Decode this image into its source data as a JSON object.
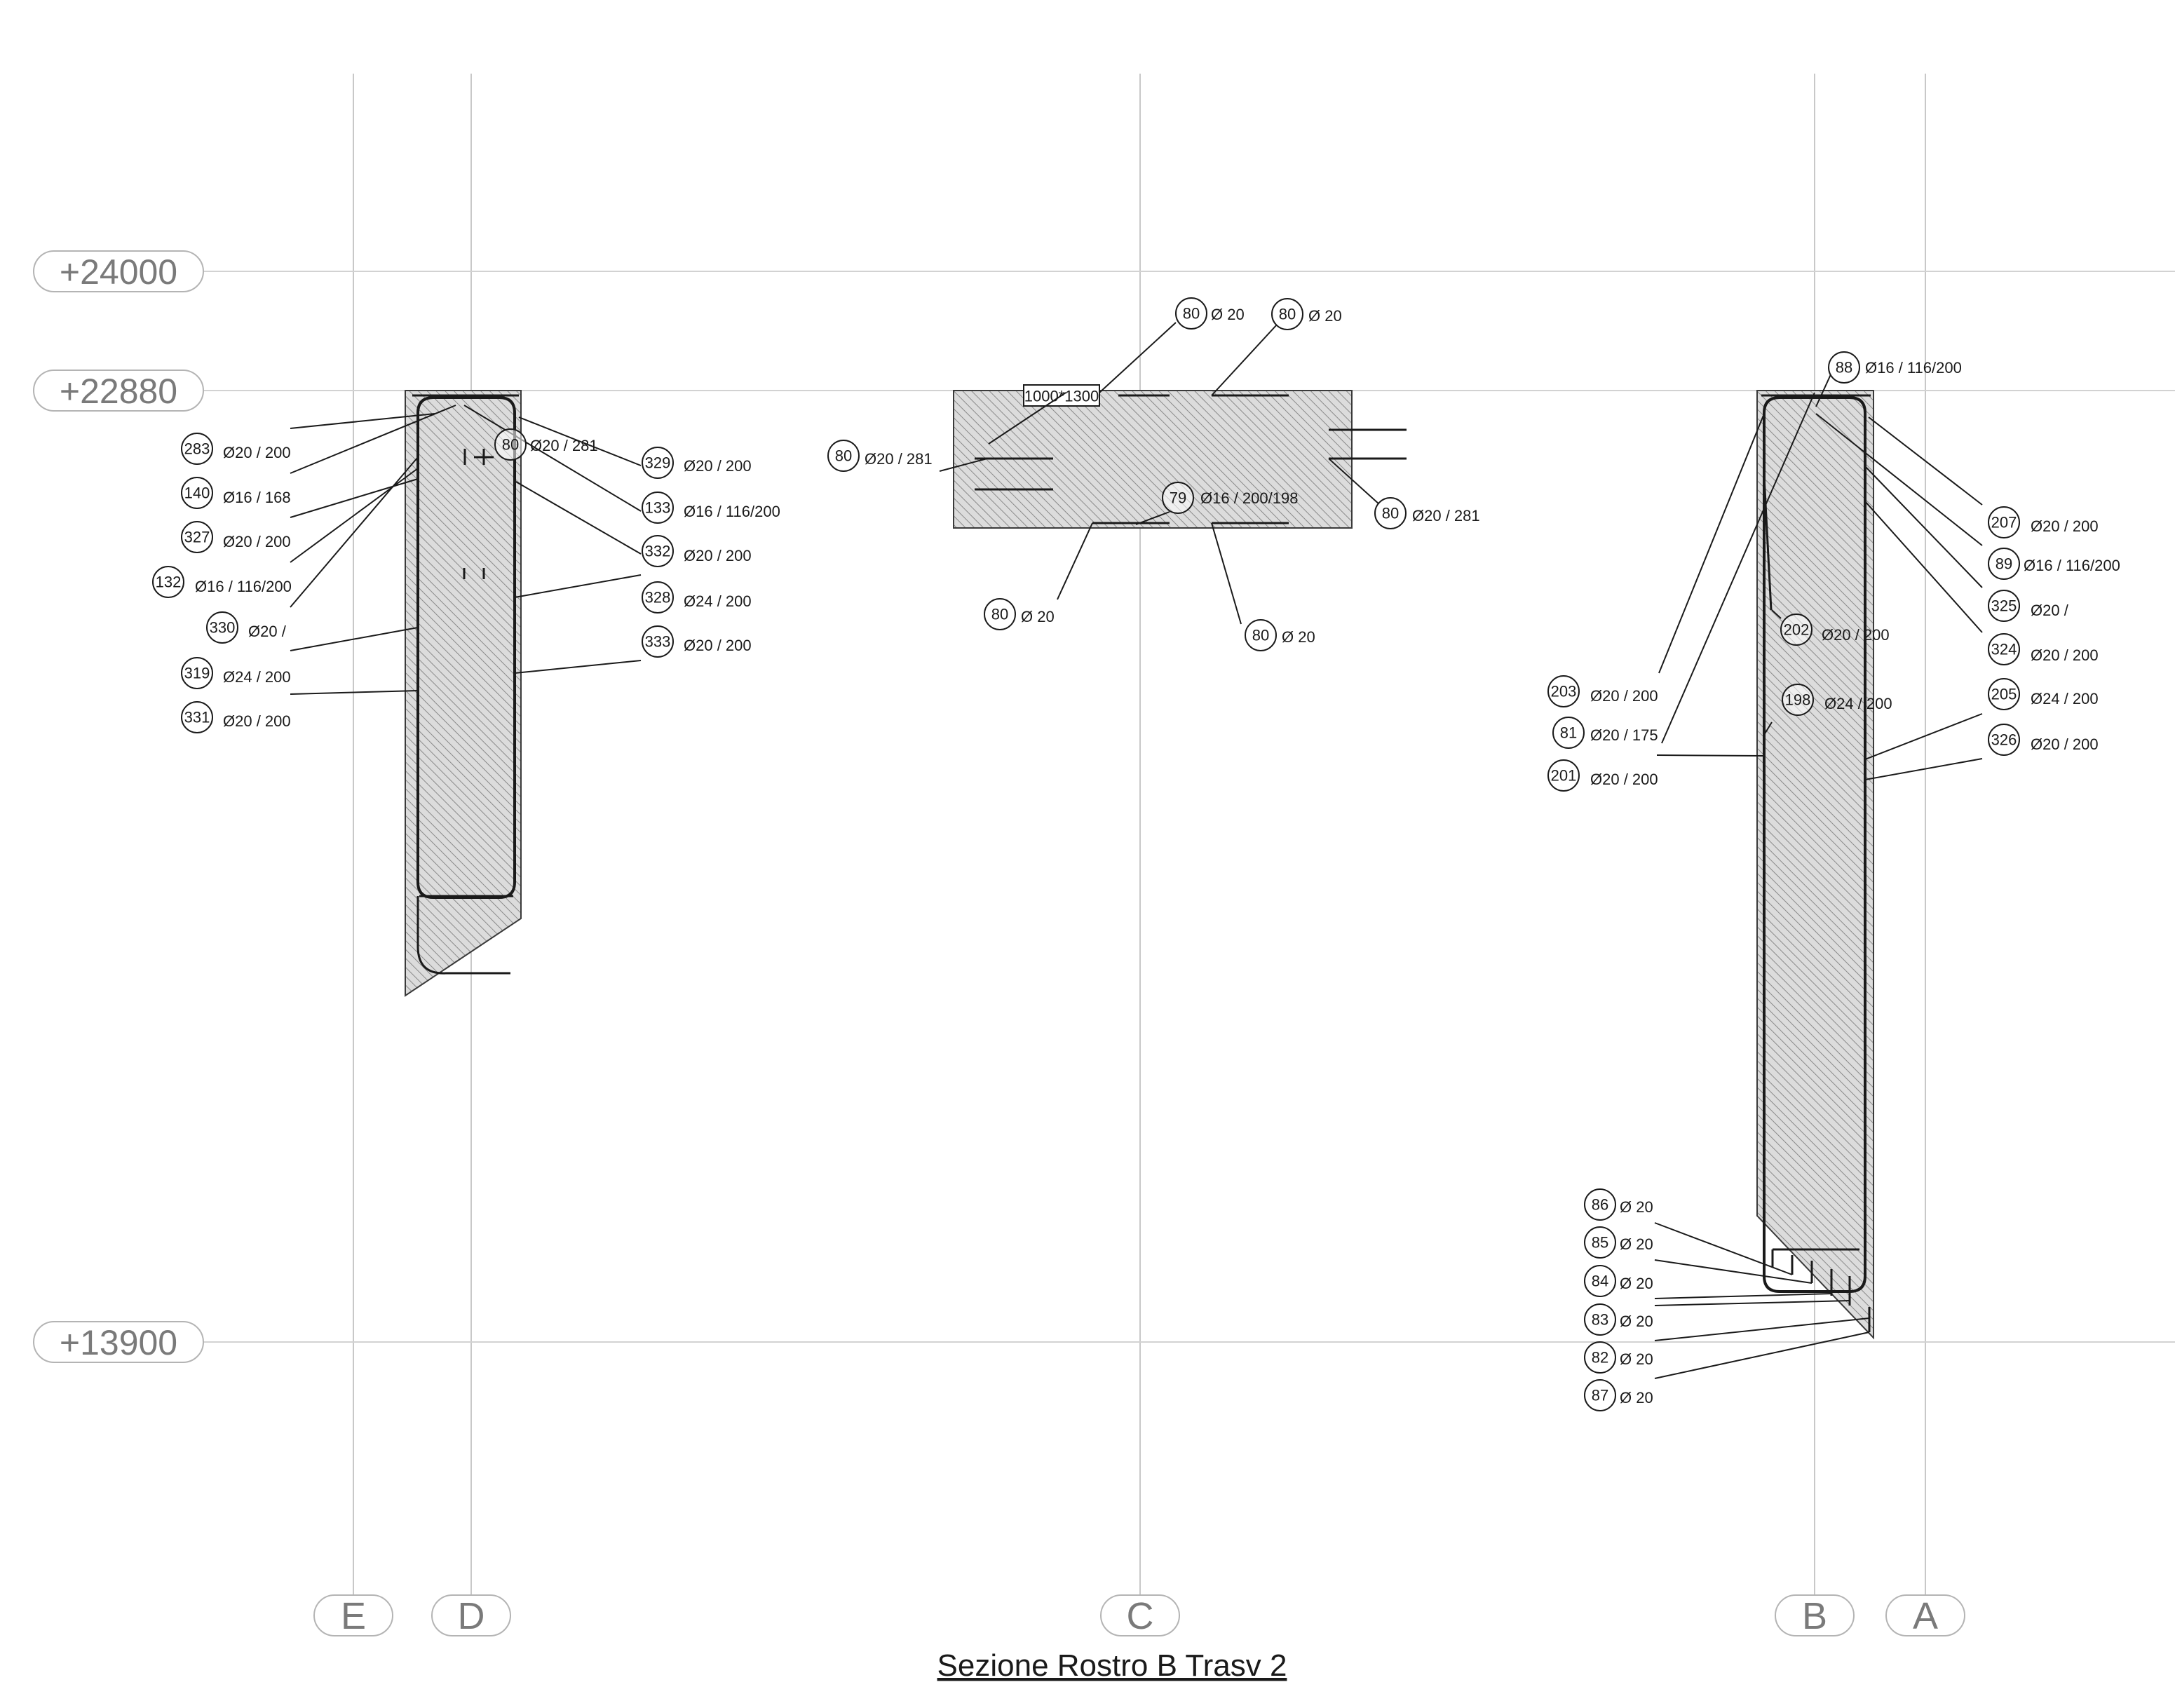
{
  "drawing_title": "Sezione Rostro B Trasv 2",
  "levels": [
    "+24000",
    "+22880",
    "+13900"
  ],
  "axes": [
    "E",
    "D",
    "C",
    "B",
    "A"
  ],
  "section_size_label": "1000*1300",
  "rebar_tags": [
    {
      "mark": "283",
      "spec": "Ø20 / 200"
    },
    {
      "mark": "140",
      "spec": "Ø16 / 168"
    },
    {
      "mark": "327",
      "spec": "Ø20 / 200"
    },
    {
      "mark": "132",
      "spec": "Ø16 / 116/200"
    },
    {
      "mark": "330",
      "spec": "Ø20 /"
    },
    {
      "mark": "319",
      "spec": "Ø24 / 200"
    },
    {
      "mark": "331",
      "spec": "Ø20 / 200"
    },
    {
      "mark": "80",
      "spec": "Ø20 / 281"
    },
    {
      "mark": "329",
      "spec": "Ø20 / 200"
    },
    {
      "mark": "133",
      "spec": "Ø16 / 116/200"
    },
    {
      "mark": "332",
      "spec": "Ø20 / 200"
    },
    {
      "mark": "328",
      "spec": "Ø24 / 200"
    },
    {
      "mark": "333",
      "spec": "Ø20 / 200"
    },
    {
      "mark": "80",
      "spec": "Ø 20"
    },
    {
      "mark": "80",
      "spec": "Ø 20"
    },
    {
      "mark": "80",
      "spec": "Ø20 / 281"
    },
    {
      "mark": "79",
      "spec": "Ø16 / 200/198"
    },
    {
      "mark": "80",
      "spec": "Ø20 / 281"
    },
    {
      "mark": "80",
      "spec": "Ø 20"
    },
    {
      "mark": "80",
      "spec": "Ø 20"
    },
    {
      "mark": "88",
      "spec": "Ø16 / 116/200"
    },
    {
      "mark": "207",
      "spec": "Ø20 / 200"
    },
    {
      "mark": "89",
      "spec": "Ø16 / 116/200"
    },
    {
      "mark": "325",
      "spec": "Ø20 /"
    },
    {
      "mark": "324",
      "spec": "Ø20 / 200"
    },
    {
      "mark": "202",
      "spec": "Ø20 / 200"
    },
    {
      "mark": "198",
      "spec": "Ø24 / 200"
    },
    {
      "mark": "205",
      "spec": "Ø24 / 200"
    },
    {
      "mark": "326",
      "spec": "Ø20 / 200"
    },
    {
      "mark": "203",
      "spec": "Ø20 / 200"
    },
    {
      "mark": "81",
      "spec": "Ø20 / 175"
    },
    {
      "mark": "201",
      "spec": "Ø20 / 200"
    },
    {
      "mark": "86",
      "spec": "Ø 20"
    },
    {
      "mark": "85",
      "spec": "Ø 20"
    },
    {
      "mark": "84",
      "spec": "Ø 20"
    },
    {
      "mark": "83",
      "spec": "Ø 20"
    },
    {
      "mark": "82",
      "spec": "Ø 20"
    },
    {
      "mark": "87",
      "spec": "Ø 20"
    }
  ]
}
